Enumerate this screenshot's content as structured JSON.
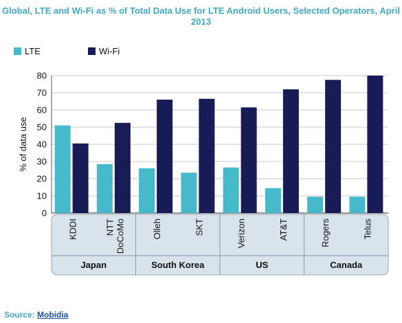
{
  "title": "Global, LTE and Wi-Fi as % of Total Data Use for LTE Android Users, Selected Operators, April 2013",
  "source_label": "Source:",
  "source_link": "Mobidia",
  "colors": {
    "lte": "#46b9cb",
    "wifi": "#171c56",
    "title": "#3fa9c2",
    "group_panel": "#d9e3ec"
  },
  "chart_data": {
    "type": "bar",
    "title": "Global, LTE and Wi-Fi as % of Total Data Use for LTE Android Users, Selected Operators, April 2013",
    "xlabel": "",
    "ylabel": "% of data use",
    "ylim": [
      0,
      80
    ],
    "yticks": [
      0,
      10,
      20,
      30,
      40,
      50,
      60,
      70,
      80
    ],
    "legend_position": "top-left",
    "grid": true,
    "categories": [
      "KDDI",
      "NTT DoCoMo",
      "Olleh",
      "SKT",
      "Verizon",
      "AT&T",
      "Rogers",
      "Telus"
    ],
    "category_lines": [
      [
        "KDDI"
      ],
      [
        "NTT",
        "DoCoMo"
      ],
      [
        "Olleh"
      ],
      [
        "SKT"
      ],
      [
        "Verizon"
      ],
      [
        "AT&T"
      ],
      [
        "Rogers"
      ],
      [
        "Telus"
      ]
    ],
    "groups": [
      {
        "name": "Japan",
        "categories": [
          "KDDI",
          "NTT DoCoMo"
        ]
      },
      {
        "name": "South Korea",
        "categories": [
          "Olleh",
          "SKT"
        ]
      },
      {
        "name": "US",
        "categories": [
          "Verizon",
          "AT&T"
        ]
      },
      {
        "name": "Canada",
        "categories": [
          "Rogers",
          "Telus"
        ]
      }
    ],
    "series": [
      {
        "name": "LTE",
        "values": [
          51,
          28.5,
          26,
          23.5,
          26.5,
          14.5,
          9.5,
          9.5
        ]
      },
      {
        "name": "Wi-Fi",
        "values": [
          40.5,
          52.5,
          66,
          66.5,
          61.5,
          72,
          77.5,
          80
        ]
      }
    ]
  }
}
